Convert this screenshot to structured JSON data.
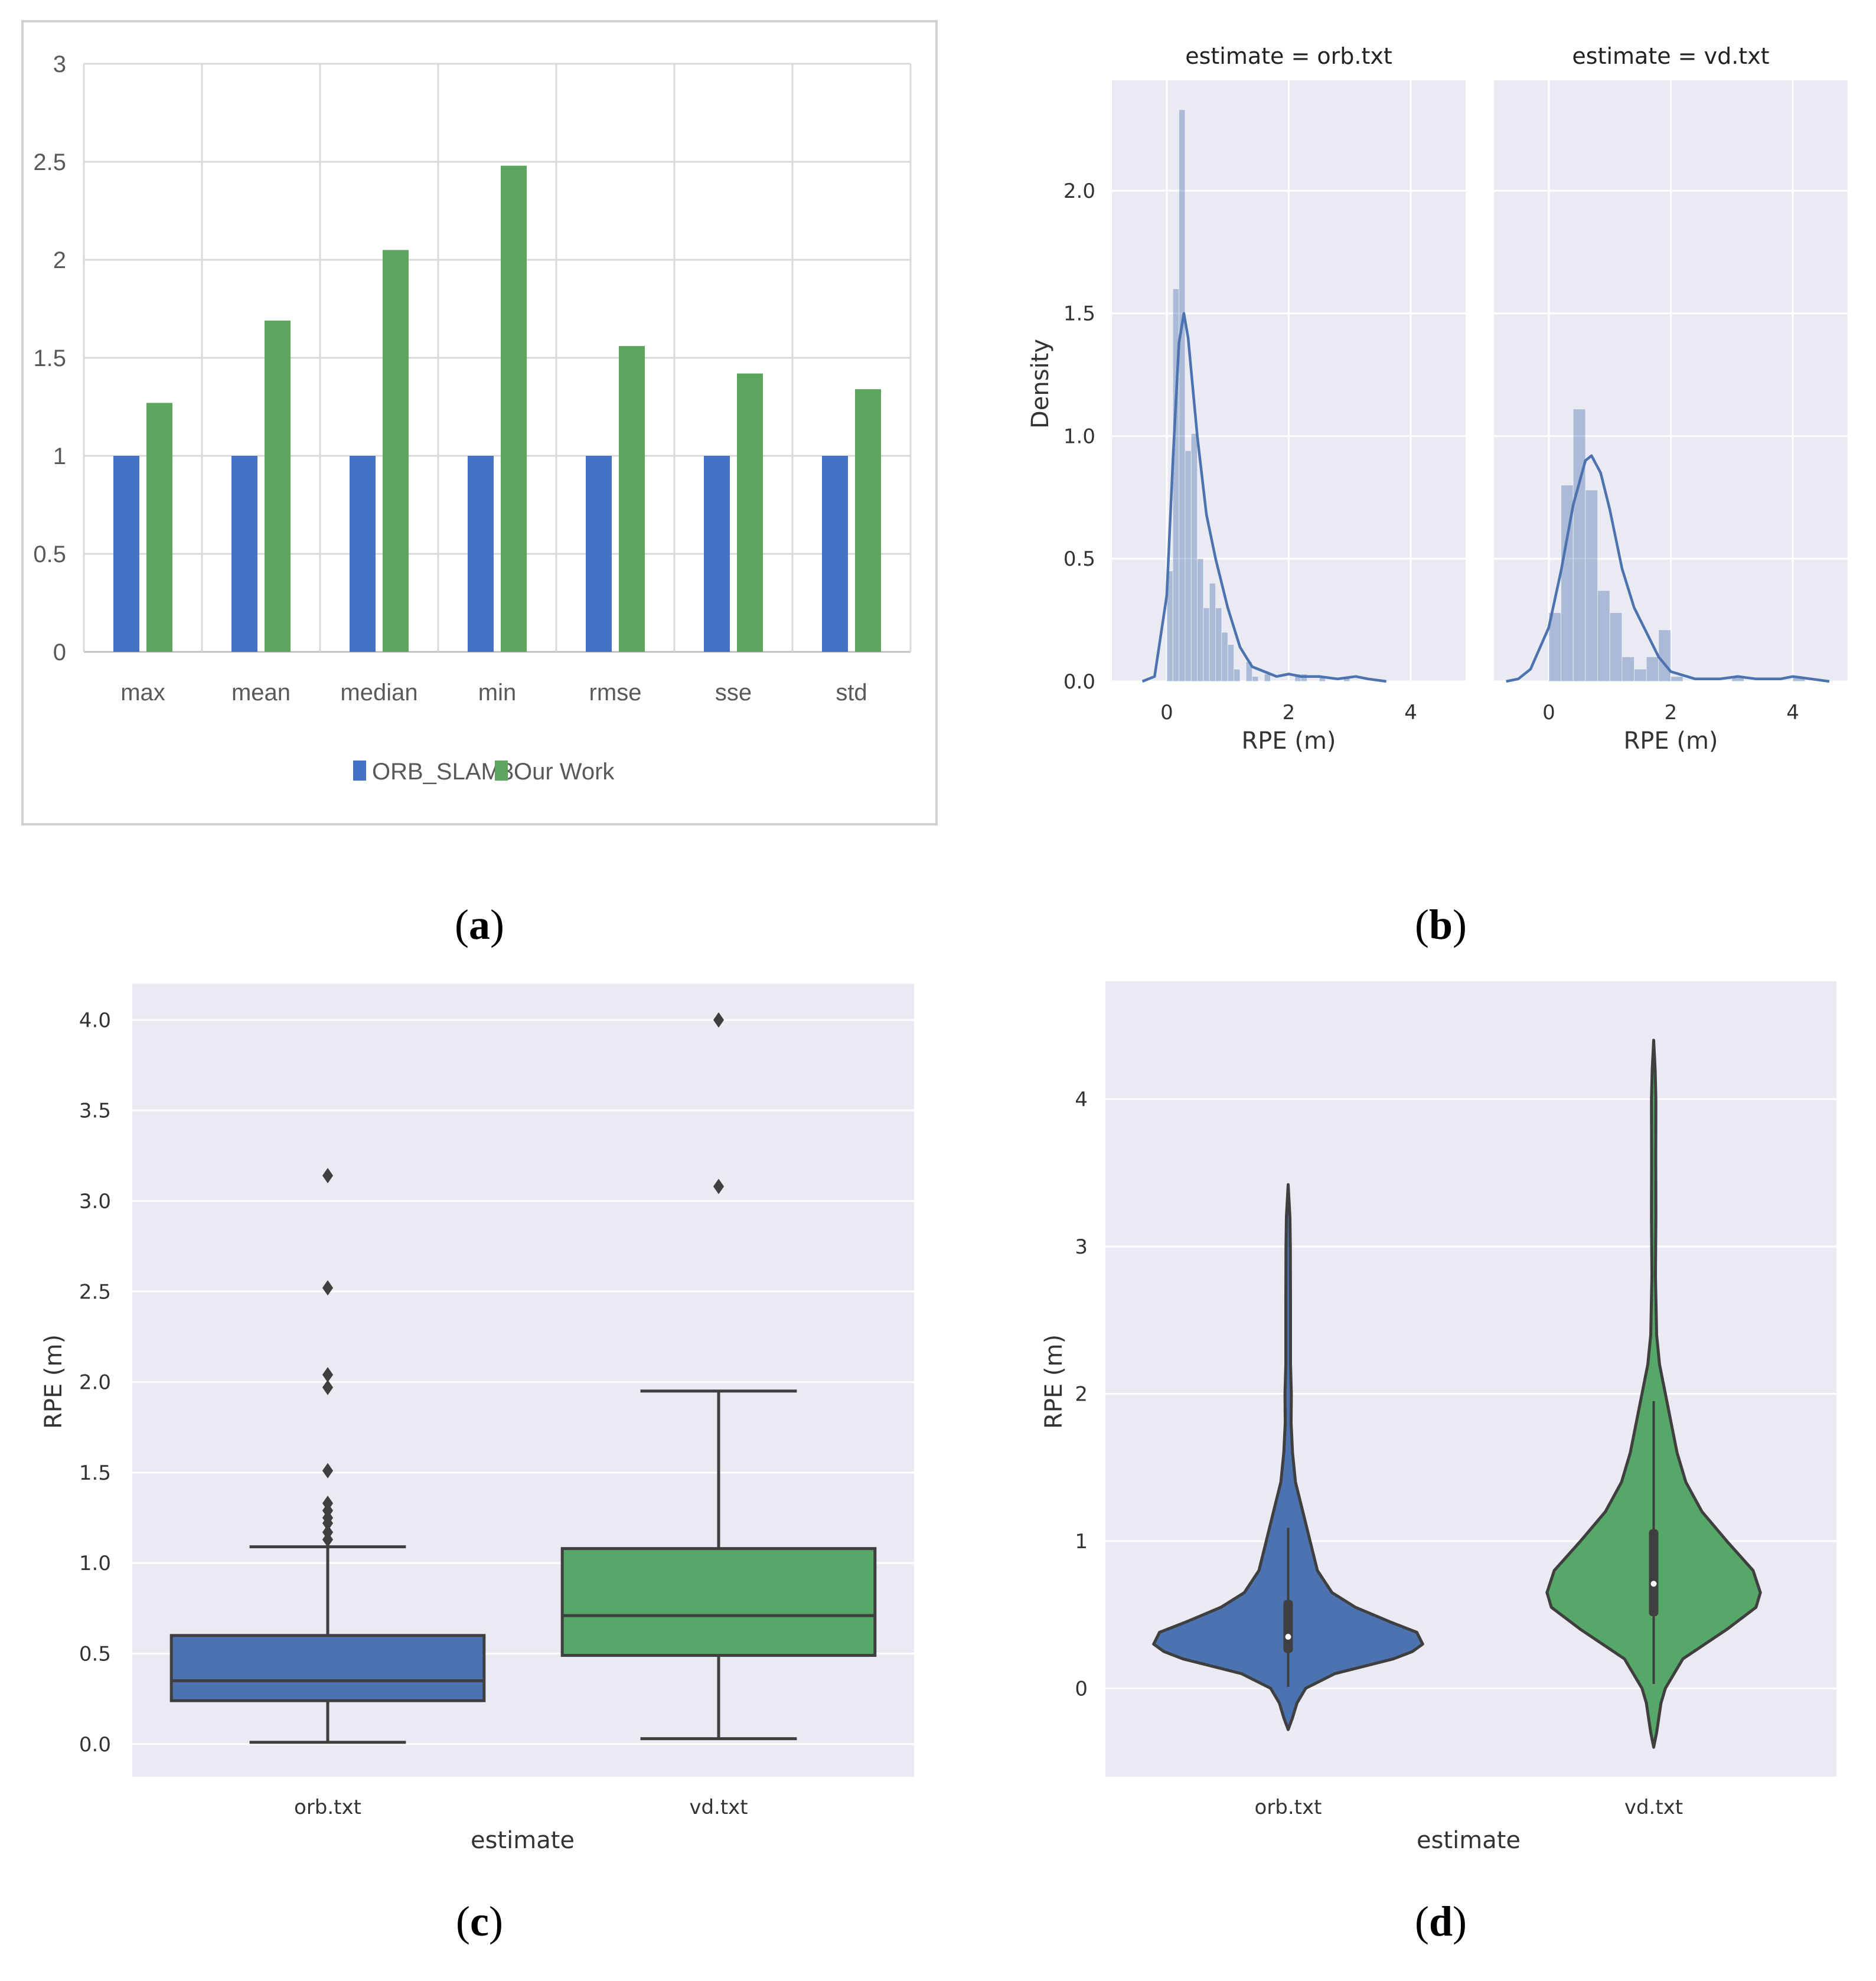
{
  "panel_labels": [
    {
      "open": "(",
      "letter": "a",
      "close": ")"
    },
    {
      "open": "(",
      "letter": "b",
      "close": ")"
    },
    {
      "open": "(",
      "letter": "c",
      "close": ")"
    },
    {
      "open": "(",
      "letter": "d",
      "close": ")"
    }
  ],
  "colors": {
    "blue": "#4472C4",
    "green": "#5BA55F",
    "sns_blue": "#4C72B0",
    "sns_green": "#55A868",
    "sns_bg": "#EAEAF2"
  },
  "chart_data": [
    {
      "id": "a",
      "type": "bar",
      "categories": [
        "max",
        "mean",
        "median",
        "min",
        "rmse",
        "sse",
        "std"
      ],
      "series": [
        {
          "name": "ORB_SLAM3",
          "values": [
            1,
            1,
            1,
            1,
            1,
            1,
            1
          ],
          "color": "#4472C4"
        },
        {
          "name": "Our Work",
          "values": [
            1.27,
            1.69,
            2.05,
            2.48,
            1.56,
            1.42,
            1.34
          ],
          "color": "#5BA55F"
        }
      ],
      "yticks": [
        "0",
        "0.5",
        "1",
        "1.5",
        "2",
        "2.5",
        "3"
      ],
      "ylim": [
        0,
        3
      ],
      "legend_position": "bottom",
      "grid": true
    },
    {
      "id": "b",
      "type": "bar",
      "subtype": "histogram with KDE (faceted)",
      "ylabel": "Density",
      "yticks": [
        "0.0",
        "0.5",
        "1.0",
        "1.5",
        "2.0"
      ],
      "ylim": [
        0,
        2.45
      ],
      "facets": [
        {
          "title": "estimate = orb.txt",
          "xlabel": "RPE (m)",
          "xticks": [
            "0",
            "2",
            "4"
          ],
          "xlim": [
            -0.9,
            4.9
          ],
          "bin_width": 0.1,
          "bin_start": 0.0,
          "heights": [
            0.45,
            1.6,
            2.33,
            0.94,
            1.01,
            0.5,
            0.3,
            0.4,
            0.3,
            0.2,
            0.15,
            0.05,
            0.0,
            0.08,
            0.02,
            0.0,
            0.03,
            0.0,
            0.0,
            0.0,
            0.0,
            0.03,
            0.03,
            0.0,
            0.0,
            0.02,
            0.0,
            0.0,
            0.0,
            0.02,
            0.0,
            0.0
          ],
          "kde": [
            [
              -0.4,
              0.0
            ],
            [
              -0.2,
              0.02
            ],
            [
              0.0,
              0.35
            ],
            [
              0.1,
              0.9
            ],
            [
              0.2,
              1.38
            ],
            [
              0.28,
              1.5
            ],
            [
              0.35,
              1.4
            ],
            [
              0.5,
              1.0
            ],
            [
              0.65,
              0.68
            ],
            [
              0.8,
              0.5
            ],
            [
              1.0,
              0.3
            ],
            [
              1.2,
              0.14
            ],
            [
              1.4,
              0.06
            ],
            [
              1.6,
              0.04
            ],
            [
              1.8,
              0.02
            ],
            [
              2.0,
              0.03
            ],
            [
              2.2,
              0.02
            ],
            [
              2.5,
              0.02
            ],
            [
              2.8,
              0.01
            ],
            [
              3.1,
              0.02
            ],
            [
              3.3,
              0.01
            ],
            [
              3.6,
              0.0
            ]
          ]
        },
        {
          "title": "estimate = vd.txt",
          "xlabel": "RPE (m)",
          "xticks": [
            "0",
            "2",
            "4"
          ],
          "xlim": [
            -0.9,
            4.9
          ],
          "bin_width": 0.2,
          "bin_start": 0.0,
          "heights": [
            0.28,
            0.8,
            1.11,
            0.78,
            0.37,
            0.28,
            0.1,
            0.05,
            0.1,
            0.21,
            0.02,
            0.0,
            0.0,
            0.0,
            0.0,
            0.02,
            0.0,
            0.0,
            0.0,
            0.0,
            0.02,
            0.0
          ],
          "kde": [
            [
              -0.7,
              0.0
            ],
            [
              -0.5,
              0.01
            ],
            [
              -0.3,
              0.05
            ],
            [
              0.0,
              0.22
            ],
            [
              0.2,
              0.45
            ],
            [
              0.4,
              0.72
            ],
            [
              0.6,
              0.9
            ],
            [
              0.7,
              0.92
            ],
            [
              0.85,
              0.85
            ],
            [
              1.0,
              0.7
            ],
            [
              1.2,
              0.46
            ],
            [
              1.4,
              0.3
            ],
            [
              1.6,
              0.2
            ],
            [
              1.8,
              0.1
            ],
            [
              2.0,
              0.04
            ],
            [
              2.4,
              0.01
            ],
            [
              2.8,
              0.01
            ],
            [
              3.1,
              0.02
            ],
            [
              3.4,
              0.01
            ],
            [
              3.8,
              0.01
            ],
            [
              4.0,
              0.02
            ],
            [
              4.3,
              0.01
            ],
            [
              4.6,
              0.0
            ]
          ]
        }
      ]
    },
    {
      "id": "c",
      "type": "box",
      "xlabel": "estimate",
      "ylabel": "RPE (m)",
      "yticks": [
        "0.0",
        "0.5",
        "1.0",
        "1.5",
        "2.0",
        "2.5",
        "3.0",
        "3.5",
        "4.0"
      ],
      "ylim": [
        -0.18,
        4.2
      ],
      "boxes": [
        {
          "category": "orb.txt",
          "whisker_low": 0.01,
          "q1": 0.24,
          "median": 0.35,
          "q3": 0.6,
          "whisker_high": 1.09,
          "outliers": [
            1.13,
            1.17,
            1.22,
            1.25,
            1.29,
            1.33,
            1.51,
            1.97,
            2.04,
            2.52,
            3.14
          ],
          "color": "#4C72B0"
        },
        {
          "category": "vd.txt",
          "whisker_low": 0.03,
          "q1": 0.49,
          "median": 0.71,
          "q3": 1.08,
          "whisker_high": 1.95,
          "outliers": [
            3.08,
            4.0
          ],
          "color": "#55A868"
        }
      ]
    },
    {
      "id": "d",
      "type": "area",
      "subtype": "violin",
      "xlabel": "estimate",
      "ylabel": "RPE (m)",
      "yticks": [
        "0",
        "1",
        "2",
        "3",
        "4"
      ],
      "ylim": [
        -0.6,
        4.8
      ],
      "violins": [
        {
          "category": "orb.txt",
          "color": "#4C72B0",
          "q1": 0.24,
          "median": 0.35,
          "q3": 0.6,
          "whisker_low": 0.01,
          "whisker_high": 1.09,
          "profile": [
            [
              -0.28,
              0.0
            ],
            [
              -0.2,
              0.03
            ],
            [
              -0.1,
              0.06
            ],
            [
              0.0,
              0.12
            ],
            [
              0.1,
              0.32
            ],
            [
              0.2,
              0.72
            ],
            [
              0.25,
              0.85
            ],
            [
              0.3,
              0.92
            ],
            [
              0.38,
              0.88
            ],
            [
              0.45,
              0.7
            ],
            [
              0.55,
              0.46
            ],
            [
              0.65,
              0.3
            ],
            [
              0.8,
              0.2
            ],
            [
              1.0,
              0.15
            ],
            [
              1.2,
              0.1
            ],
            [
              1.4,
              0.05
            ],
            [
              1.6,
              0.03
            ],
            [
              1.8,
              0.02
            ],
            [
              2.0,
              0.022
            ],
            [
              2.2,
              0.016
            ],
            [
              2.6,
              0.016
            ],
            [
              3.0,
              0.015
            ],
            [
              3.2,
              0.012
            ],
            [
              3.42,
              0.0
            ]
          ]
        },
        {
          "category": "vd.txt",
          "color": "#55A868",
          "q1": 0.49,
          "median": 0.71,
          "q3": 1.08,
          "whisker_low": 0.03,
          "whisker_high": 1.95,
          "profile": [
            [
              -0.4,
              0.0
            ],
            [
              -0.3,
              0.02
            ],
            [
              -0.1,
              0.05
            ],
            [
              0.0,
              0.08
            ],
            [
              0.2,
              0.2
            ],
            [
              0.4,
              0.5
            ],
            [
              0.55,
              0.7
            ],
            [
              0.65,
              0.73
            ],
            [
              0.8,
              0.68
            ],
            [
              1.0,
              0.5
            ],
            [
              1.2,
              0.33
            ],
            [
              1.4,
              0.22
            ],
            [
              1.6,
              0.16
            ],
            [
              1.8,
              0.12
            ],
            [
              2.0,
              0.08
            ],
            [
              2.2,
              0.04
            ],
            [
              2.4,
              0.02
            ],
            [
              2.8,
              0.012
            ],
            [
              3.2,
              0.015
            ],
            [
              3.6,
              0.014
            ],
            [
              4.0,
              0.015
            ],
            [
              4.2,
              0.01
            ],
            [
              4.4,
              0.0
            ]
          ]
        }
      ]
    }
  ]
}
